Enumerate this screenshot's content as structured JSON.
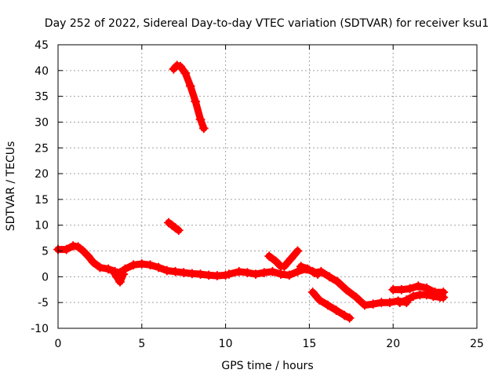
{
  "chart_data": {
    "type": "scatter",
    "title": "Day 252 of 2022, Sidereal Day-to-day VTEC variation (SDTVAR) for receiver ksu1",
    "xlabel": "GPS time / hours",
    "ylabel": "SDTVAR / TECUs",
    "xlim": [
      0,
      25
    ],
    "ylim": [
      -10,
      45
    ],
    "xticks": [
      0,
      5,
      10,
      15,
      20,
      25
    ],
    "yticks": [
      -10,
      -5,
      0,
      5,
      10,
      15,
      20,
      25,
      30,
      35,
      40,
      45
    ],
    "grid": true,
    "series": [
      {
        "name": "SDTVAR",
        "color": "#ff0000",
        "marker": "plus",
        "tracks": [
          {
            "x": [
              0.0,
              0.5,
              0.9,
              1.2,
              1.5,
              1.8,
              2.1,
              2.5,
              3.0,
              3.4,
              3.7,
              4.0,
              4.5,
              5.0,
              5.5,
              6.0,
              6.5,
              7.0,
              7.5,
              8.0,
              8.5,
              9.0,
              9.5,
              10.0
            ],
            "y": [
              5.3,
              5.3,
              6.0,
              5.8,
              5.0,
              4.0,
              2.8,
              1.8,
              1.5,
              1.0,
              0.8,
              1.5,
              2.3,
              2.5,
              2.3,
              1.8,
              1.2,
              1.0,
              0.8,
              0.6,
              0.5,
              0.3,
              0.2,
              0.3
            ]
          },
          {
            "x": [
              3.3,
              3.5,
              3.7,
              3.9
            ],
            "y": [
              1.0,
              0.0,
              -1.0,
              0.5
            ]
          },
          {
            "x": [
              6.6,
              6.8,
              7.0,
              7.2
            ],
            "y": [
              10.5,
              10.0,
              9.5,
              9.0
            ]
          },
          {
            "x": [
              6.9,
              7.1,
              7.3,
              7.6,
              7.9,
              8.2,
              8.5,
              8.7
            ],
            "y": [
              40.3,
              41.0,
              40.8,
              39.5,
              37.0,
              34.0,
              30.5,
              28.8
            ]
          },
          {
            "x": [
              10.2,
              10.8,
              11.3,
              11.8,
              12.3,
              12.8,
              13.3,
              13.8,
              14.3,
              14.8,
              15.2,
              15.5
            ],
            "y": [
              0.5,
              1.0,
              0.8,
              0.5,
              0.8,
              1.0,
              0.5,
              0.3,
              1.0,
              1.5,
              1.0,
              0.5
            ]
          },
          {
            "x": [
              12.6,
              13.0,
              13.3
            ],
            "y": [
              4.0,
              3.0,
              2.0
            ]
          },
          {
            "x": [
              13.5,
              13.9,
              14.3
            ],
            "y": [
              2.0,
              3.5,
              5.0
            ]
          },
          {
            "x": [
              14.5,
              14.9,
              15.3,
              15.7,
              16.2,
              16.7,
              17.2,
              17.8,
              18.3,
              18.8,
              19.3,
              19.8,
              20.3,
              20.8
            ],
            "y": [
              2.0,
              1.5,
              0.8,
              1.0,
              0.0,
              -1.0,
              -2.5,
              -4.0,
              -5.5,
              -5.3,
              -5.0,
              -5.0,
              -4.7,
              -5.0
            ]
          },
          {
            "x": [
              15.2,
              15.6,
              16.1,
              16.6,
              17.1,
              17.4
            ],
            "y": [
              -3.0,
              -4.5,
              -5.5,
              -6.5,
              -7.5,
              -8.0
            ]
          },
          {
            "x": [
              20.0,
              20.5,
              21.0,
              21.5,
              22.0,
              22.5,
              23.0
            ],
            "y": [
              -2.5,
              -2.5,
              -2.3,
              -1.8,
              -2.2,
              -3.0,
              -3.0
            ]
          },
          {
            "x": [
              20.4,
              20.8,
              21.2,
              21.6,
              22.0,
              22.4,
              22.8,
              23.0
            ],
            "y": [
              -5.0,
              -4.5,
              -3.8,
              -3.5,
              -3.5,
              -3.8,
              -4.0,
              -4.0
            ]
          }
        ]
      }
    ]
  }
}
